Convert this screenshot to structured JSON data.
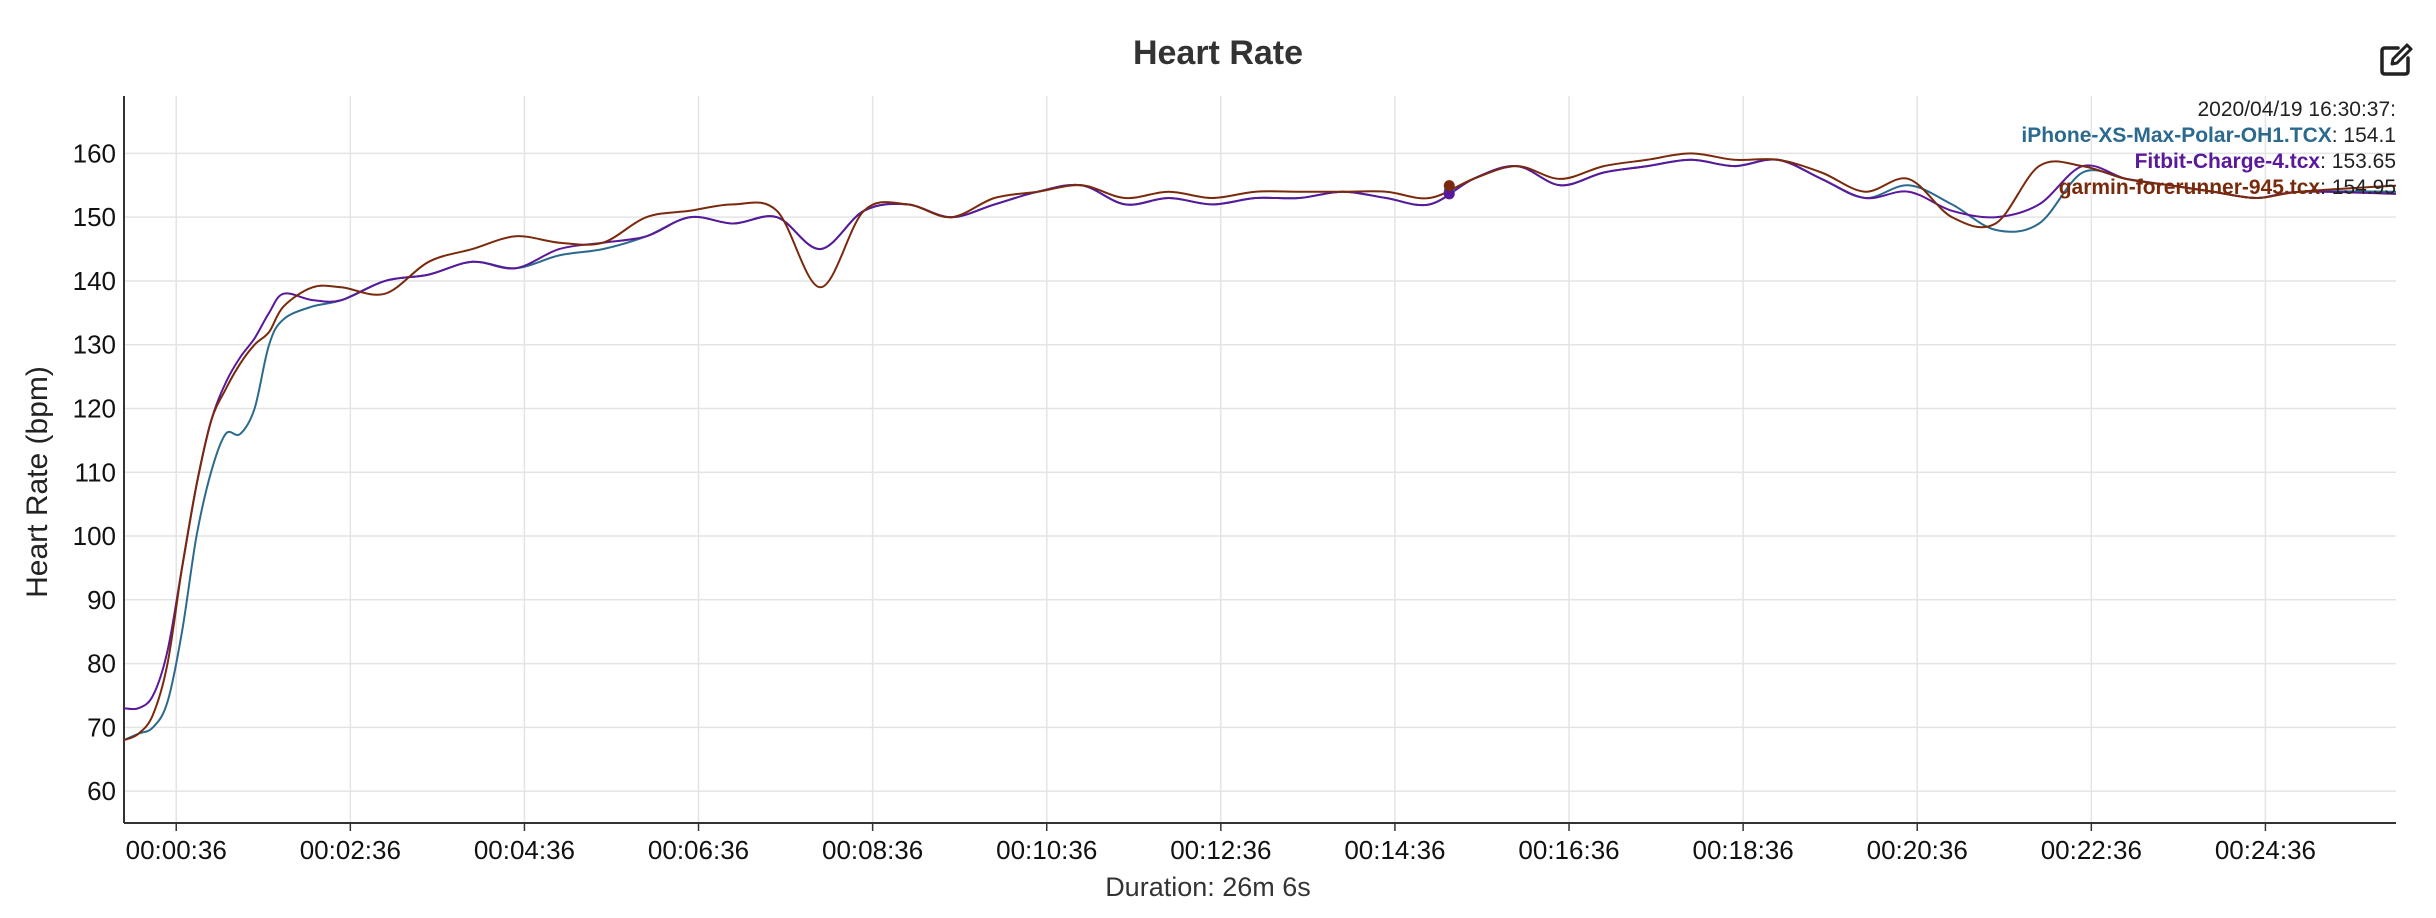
{
  "chart_data": {
    "type": "line",
    "title": "Heart Rate",
    "ylabel": "Heart Rate (bpm)",
    "xlabel": "Duration: 26m 6s",
    "ylim": [
      55,
      169
    ],
    "yticks": [
      60,
      70,
      80,
      90,
      100,
      110,
      120,
      130,
      140,
      150,
      160
    ],
    "xticks": [
      "00:00:36",
      "00:02:36",
      "00:04:36",
      "00:06:36",
      "00:08:36",
      "00:10:36",
      "00:12:36",
      "00:14:36",
      "00:16:36",
      "00:18:36",
      "00:20:36",
      "00:22:36",
      "00:24:36"
    ],
    "grid": true,
    "legend": {
      "placement": "top-right",
      "timestamp": "2020/04/19 16:30:37:",
      "entries": [
        {
          "name": "iPhone-XS-Max-Polar-OH1.TCX",
          "value": "154.1",
          "color": "#2b6a8e"
        },
        {
          "name": "Fitbit-Charge-4.tcx",
          "value": "153.65",
          "color": "#5a189a"
        },
        {
          "name": "garmin-forerunner-945.tcx",
          "value": "154.95",
          "color": "#7a2a0c"
        }
      ]
    },
    "x_unit": "seconds",
    "series": [
      {
        "name": "iPhone-XS-Max-Polar-OH1.TCX",
        "color": "#2b6a8e",
        "x": [
          0,
          10,
          20,
          30,
          40,
          50,
          60,
          70,
          80,
          90,
          100,
          110,
          130,
          150,
          180,
          210,
          240,
          270,
          300,
          330,
          360,
          390,
          420,
          450,
          480,
          510,
          540,
          570,
          600,
          630,
          660,
          690,
          720,
          750,
          780,
          810,
          840,
          870,
          900,
          930,
          960,
          990,
          1020,
          1050,
          1080,
          1110,
          1140,
          1170,
          1200,
          1230,
          1260,
          1290,
          1320,
          1350,
          1380,
          1410,
          1440,
          1470,
          1500,
          1566
        ],
        "y": [
          68,
          69,
          70,
          74,
          85,
          100,
          110,
          116,
          116,
          120,
          130,
          134,
          136,
          137,
          140,
          141,
          143,
          142,
          144,
          145,
          147,
          150,
          149,
          150,
          145,
          151,
          152,
          150,
          152,
          154,
          155,
          152,
          153,
          152,
          153,
          153,
          154,
          153,
          152,
          156,
          158,
          155,
          157,
          158,
          159,
          158,
          159,
          156,
          153,
          155,
          152,
          148,
          149,
          157,
          156,
          155,
          154,
          153,
          154,
          154
        ]
      },
      {
        "name": "Fitbit-Charge-4.tcx",
        "color": "#5a189a",
        "x": [
          0,
          10,
          20,
          30,
          40,
          50,
          60,
          70,
          80,
          90,
          100,
          110,
          130,
          150,
          180,
          210,
          240,
          270,
          300,
          330,
          360,
          390,
          420,
          450,
          480,
          510,
          540,
          570,
          600,
          630,
          660,
          690,
          720,
          750,
          780,
          810,
          840,
          870,
          900,
          930,
          960,
          990,
          1020,
          1050,
          1080,
          1110,
          1140,
          1170,
          1200,
          1230,
          1260,
          1290,
          1320,
          1350,
          1380,
          1410,
          1440,
          1470,
          1500,
          1566
        ],
        "y": [
          73,
          73,
          75,
          82,
          95,
          108,
          118,
          124,
          128,
          131,
          135,
          138,
          137,
          137,
          140,
          141,
          143,
          142,
          145,
          146,
          147,
          150,
          149,
          150,
          145,
          151,
          152,
          150,
          152,
          154,
          155,
          152,
          153,
          152,
          153,
          153,
          154,
          153,
          152,
          156,
          158,
          155,
          157,
          158,
          159,
          158,
          159,
          156,
          153,
          154,
          151,
          150,
          152,
          158,
          156,
          155,
          154,
          153,
          154,
          153.65
        ]
      },
      {
        "name": "garmin-forerunner-945.tcx",
        "color": "#7a2a0c",
        "x": [
          0,
          10,
          20,
          30,
          40,
          50,
          60,
          70,
          80,
          90,
          100,
          110,
          130,
          150,
          180,
          210,
          240,
          270,
          300,
          330,
          360,
          390,
          420,
          450,
          480,
          510,
          540,
          570,
          600,
          630,
          660,
          690,
          720,
          750,
          780,
          810,
          840,
          870,
          900,
          930,
          960,
          990,
          1020,
          1050,
          1080,
          1110,
          1140,
          1170,
          1200,
          1230,
          1260,
          1290,
          1320,
          1350,
          1380,
          1410,
          1440,
          1470,
          1500,
          1566
        ],
        "y": [
          68,
          69,
          72,
          80,
          95,
          108,
          118,
          123,
          127,
          130,
          132,
          136,
          139,
          139,
          138,
          143,
          145,
          147,
          146,
          146,
          150,
          151,
          152,
          151,
          139,
          151,
          152,
          150,
          153,
          154,
          155,
          153,
          154,
          153,
          154,
          154,
          154,
          154,
          153,
          156,
          158,
          156,
          158,
          159,
          160,
          159,
          159,
          157,
          154,
          156,
          150,
          149,
          158,
          158,
          156,
          155,
          154,
          153,
          154,
          154.95
        ]
      }
    ]
  }
}
